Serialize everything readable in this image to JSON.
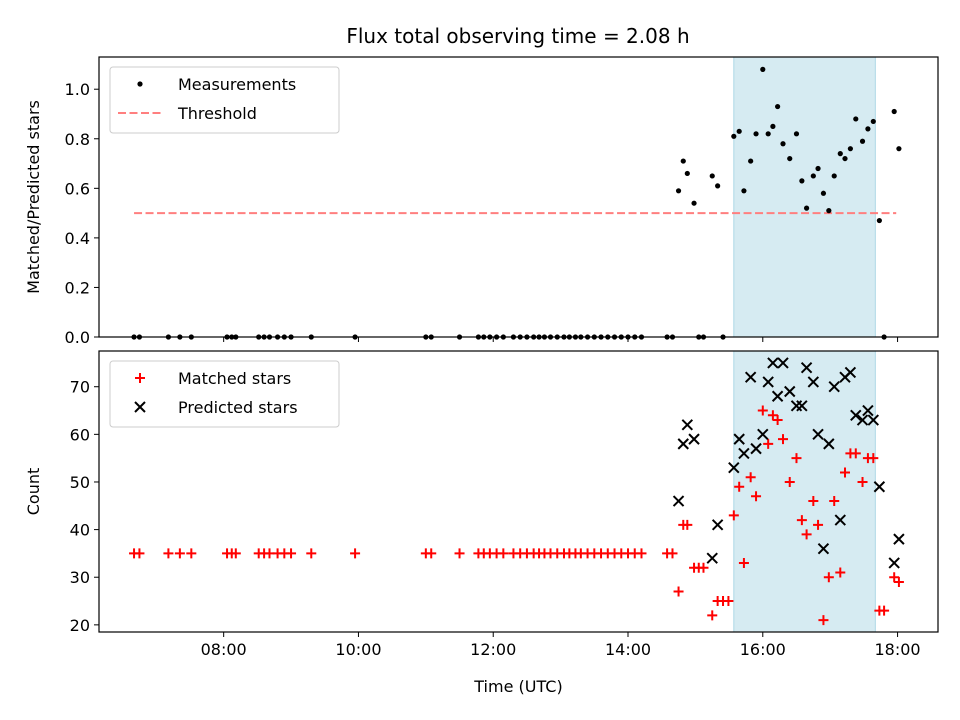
{
  "title": "Flux total observing time = 2.08 h",
  "chart_data": [
    {
      "type": "scatter",
      "ylabel": "Matched/Predicted stars",
      "xlim": [
        6.15,
        18.6
      ],
      "ylim": [
        0.0,
        1.13
      ],
      "yticks": [
        0.0,
        0.2,
        0.4,
        0.6,
        0.8,
        1.0
      ],
      "ytick_labels": [
        "0.0",
        "0.2",
        "0.4",
        "0.6",
        "0.8",
        "1.0"
      ],
      "shaded_interval": [
        15.57,
        17.67
      ],
      "legend_position": "top-left",
      "legend": [
        "Measurements",
        "Threshold"
      ],
      "threshold": {
        "name": "Threshold",
        "value": 0.5,
        "x": [
          6.67,
          17.98
        ],
        "color": "#ff7f7f"
      },
      "series": [
        {
          "name": "Measurements",
          "color": "#000000",
          "x": [
            6.67,
            6.75,
            7.18,
            7.35,
            7.52,
            8.05,
            8.12,
            8.18,
            8.52,
            8.6,
            8.68,
            8.8,
            8.9,
            9.0,
            9.3,
            9.95,
            11.0,
            11.08,
            11.5,
            11.78,
            11.86,
            11.95,
            12.05,
            12.15,
            12.3,
            12.4,
            12.5,
            12.6,
            12.68,
            12.76,
            12.85,
            12.95,
            13.05,
            13.13,
            13.22,
            13.3,
            13.4,
            13.5,
            13.6,
            13.7,
            13.8,
            13.9,
            14.0,
            14.1,
            14.2,
            14.58,
            14.66,
            14.75,
            14.82,
            14.88,
            14.98,
            15.05,
            15.12,
            15.25,
            15.33,
            15.41,
            15.57,
            15.65,
            15.72,
            15.82,
            15.9,
            16.0,
            16.08,
            16.15,
            16.22,
            16.3,
            16.4,
            16.5,
            16.58,
            16.65,
            16.75,
            16.82,
            16.9,
            16.98,
            17.06,
            17.15,
            17.22,
            17.3,
            17.38,
            17.48,
            17.56,
            17.64,
            17.73,
            17.8,
            17.95,
            18.02
          ],
          "y": [
            0,
            0,
            0,
            0,
            0,
            0,
            0,
            0,
            0,
            0,
            0,
            0,
            0,
            0,
            0,
            0,
            0,
            0,
            0,
            0,
            0,
            0,
            0,
            0,
            0,
            0,
            0,
            0,
            0,
            0,
            0,
            0,
            0,
            0,
            0,
            0,
            0,
            0,
            0,
            0,
            0,
            0,
            0,
            0,
            0,
            0,
            0,
            0.59,
            0.71,
            0.66,
            0.54,
            0,
            0,
            0.65,
            0.61,
            0,
            0.81,
            0.83,
            0.59,
            0.71,
            0.82,
            1.08,
            0.82,
            0.85,
            0.93,
            0.78,
            0.72,
            0.82,
            0.63,
            0.52,
            0.65,
            0.68,
            0.58,
            0.51,
            0.65,
            0.74,
            0.72,
            0.76,
            0.88,
            0.79,
            0.84,
            0.87,
            0.47,
            0,
            0.91,
            0.76
          ]
        }
      ]
    },
    {
      "type": "scatter",
      "xlabel": "Time (UTC)",
      "ylabel": "Count",
      "xlim": [
        6.15,
        18.6
      ],
      "ylim": [
        18.5,
        77.5
      ],
      "yticks": [
        20,
        30,
        40,
        50,
        60,
        70
      ],
      "ytick_labels": [
        "20",
        "30",
        "40",
        "50",
        "60",
        "70"
      ],
      "xticks": [
        8,
        10,
        12,
        14,
        16,
        18
      ],
      "xtick_labels": [
        "08:00",
        "10:00",
        "12:00",
        "14:00",
        "16:00",
        "18:00"
      ],
      "shaded_interval": [
        15.57,
        17.67
      ],
      "legend_position": "top-left",
      "legend": [
        "Matched stars",
        "Predicted stars"
      ],
      "series": [
        {
          "name": "Matched stars",
          "marker": "plus",
          "color": "#ff0000",
          "x": [
            6.67,
            6.75,
            7.18,
            7.35,
            7.52,
            8.05,
            8.12,
            8.18,
            8.52,
            8.6,
            8.68,
            8.8,
            8.9,
            9.0,
            9.3,
            9.95,
            11.0,
            11.08,
            11.5,
            11.78,
            11.86,
            11.95,
            12.05,
            12.15,
            12.3,
            12.4,
            12.5,
            12.6,
            12.68,
            12.76,
            12.85,
            12.95,
            13.05,
            13.13,
            13.22,
            13.3,
            13.4,
            13.5,
            13.6,
            13.7,
            13.8,
            13.9,
            14.0,
            14.1,
            14.2,
            14.58,
            14.66,
            14.75,
            14.82,
            14.88,
            14.98,
            15.05,
            15.12,
            15.25,
            15.33,
            15.41,
            15.49,
            15.57,
            15.65,
            15.72,
            15.82,
            15.9,
            16.0,
            16.08,
            16.15,
            16.22,
            16.3,
            16.4,
            16.5,
            16.58,
            16.65,
            16.75,
            16.82,
            16.9,
            16.98,
            17.06,
            17.15,
            17.22,
            17.3,
            17.38,
            17.48,
            17.56,
            17.64,
            17.73,
            17.8,
            17.95,
            18.02
          ],
          "y": [
            35,
            35,
            35,
            35,
            35,
            35,
            35,
            35,
            35,
            35,
            35,
            35,
            35,
            35,
            35,
            35,
            35,
            35,
            35,
            35,
            35,
            35,
            35,
            35,
            35,
            35,
            35,
            35,
            35,
            35,
            35,
            35,
            35,
            35,
            35,
            35,
            35,
            35,
            35,
            35,
            35,
            35,
            35,
            35,
            35,
            35,
            35,
            27,
            41,
            41,
            32,
            32,
            32,
            22,
            25,
            25,
            25,
            43,
            49,
            33,
            51,
            47,
            65,
            58,
            64,
            63,
            59,
            50,
            55,
            42,
            39,
            46,
            41,
            21,
            30,
            46,
            31,
            52,
            56,
            56,
            50,
            55,
            55,
            23,
            23,
            30,
            29
          ]
        },
        {
          "name": "Predicted stars",
          "marker": "x",
          "color": "#000000",
          "x": [
            14.75,
            14.82,
            14.88,
            14.98,
            15.25,
            15.33,
            15.57,
            15.65,
            15.72,
            15.82,
            15.9,
            16.0,
            16.08,
            16.15,
            16.22,
            16.3,
            16.4,
            16.5,
            16.58,
            16.65,
            16.75,
            16.82,
            16.9,
            16.98,
            17.06,
            17.15,
            17.22,
            17.3,
            17.38,
            17.48,
            17.56,
            17.64,
            17.73,
            17.95,
            18.02
          ],
          "y": [
            46,
            58,
            62,
            59,
            34,
            41,
            53,
            59,
            56,
            72,
            57,
            60,
            71,
            75,
            68,
            75,
            69,
            66,
            66,
            74,
            71,
            60,
            36,
            58,
            70,
            42,
            72,
            73,
            64,
            63,
            65,
            63,
            49,
            33,
            38
          ]
        }
      ]
    }
  ]
}
